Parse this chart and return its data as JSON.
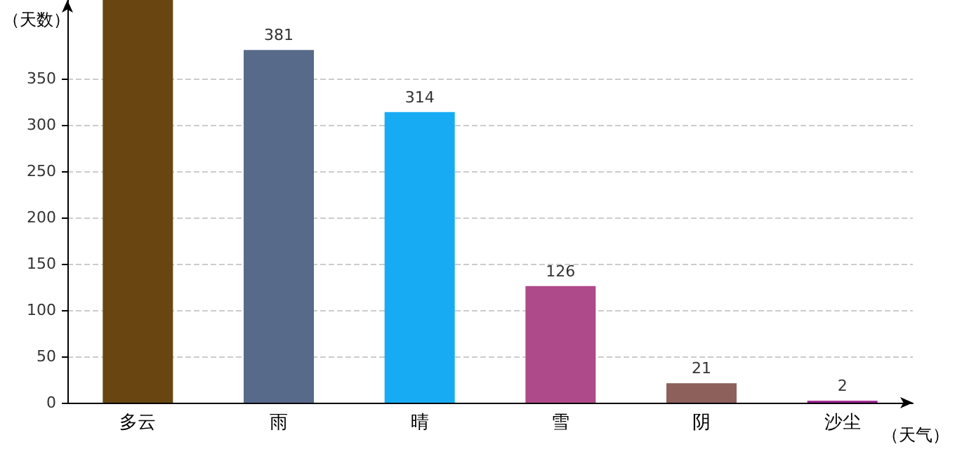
{
  "chart_data": {
    "type": "bar",
    "xlabel": "（天气）",
    "ylabel": "（天数）",
    "categories": [
      "多云",
      "雨",
      "晴",
      "雪",
      "阴",
      "沙尘"
    ],
    "values": [
      435,
      381,
      314,
      126,
      21,
      2
    ],
    "colors": [
      "#694611",
      "#586a8a",
      "#17abf4",
      "#ae4a8a",
      "#8d605b",
      "#9b1e8e"
    ],
    "value_labels": [
      null,
      "381",
      "314",
      "126",
      "21",
      "2"
    ],
    "ylim": [
      0,
      435
    ],
    "yticks": [
      0,
      50,
      100,
      150,
      200,
      250,
      300,
      350
    ],
    "grid": "y"
  }
}
